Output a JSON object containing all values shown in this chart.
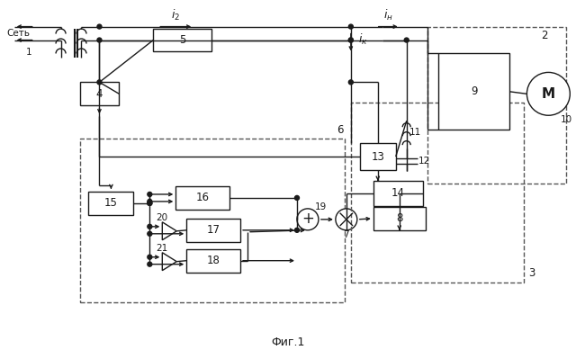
{
  "title": "Фиг.1",
  "bg": "#ffffff",
  "lc": "#1a1a1a",
  "dc": "#555555",
  "lw": 1.0,
  "dlw": 1.0
}
